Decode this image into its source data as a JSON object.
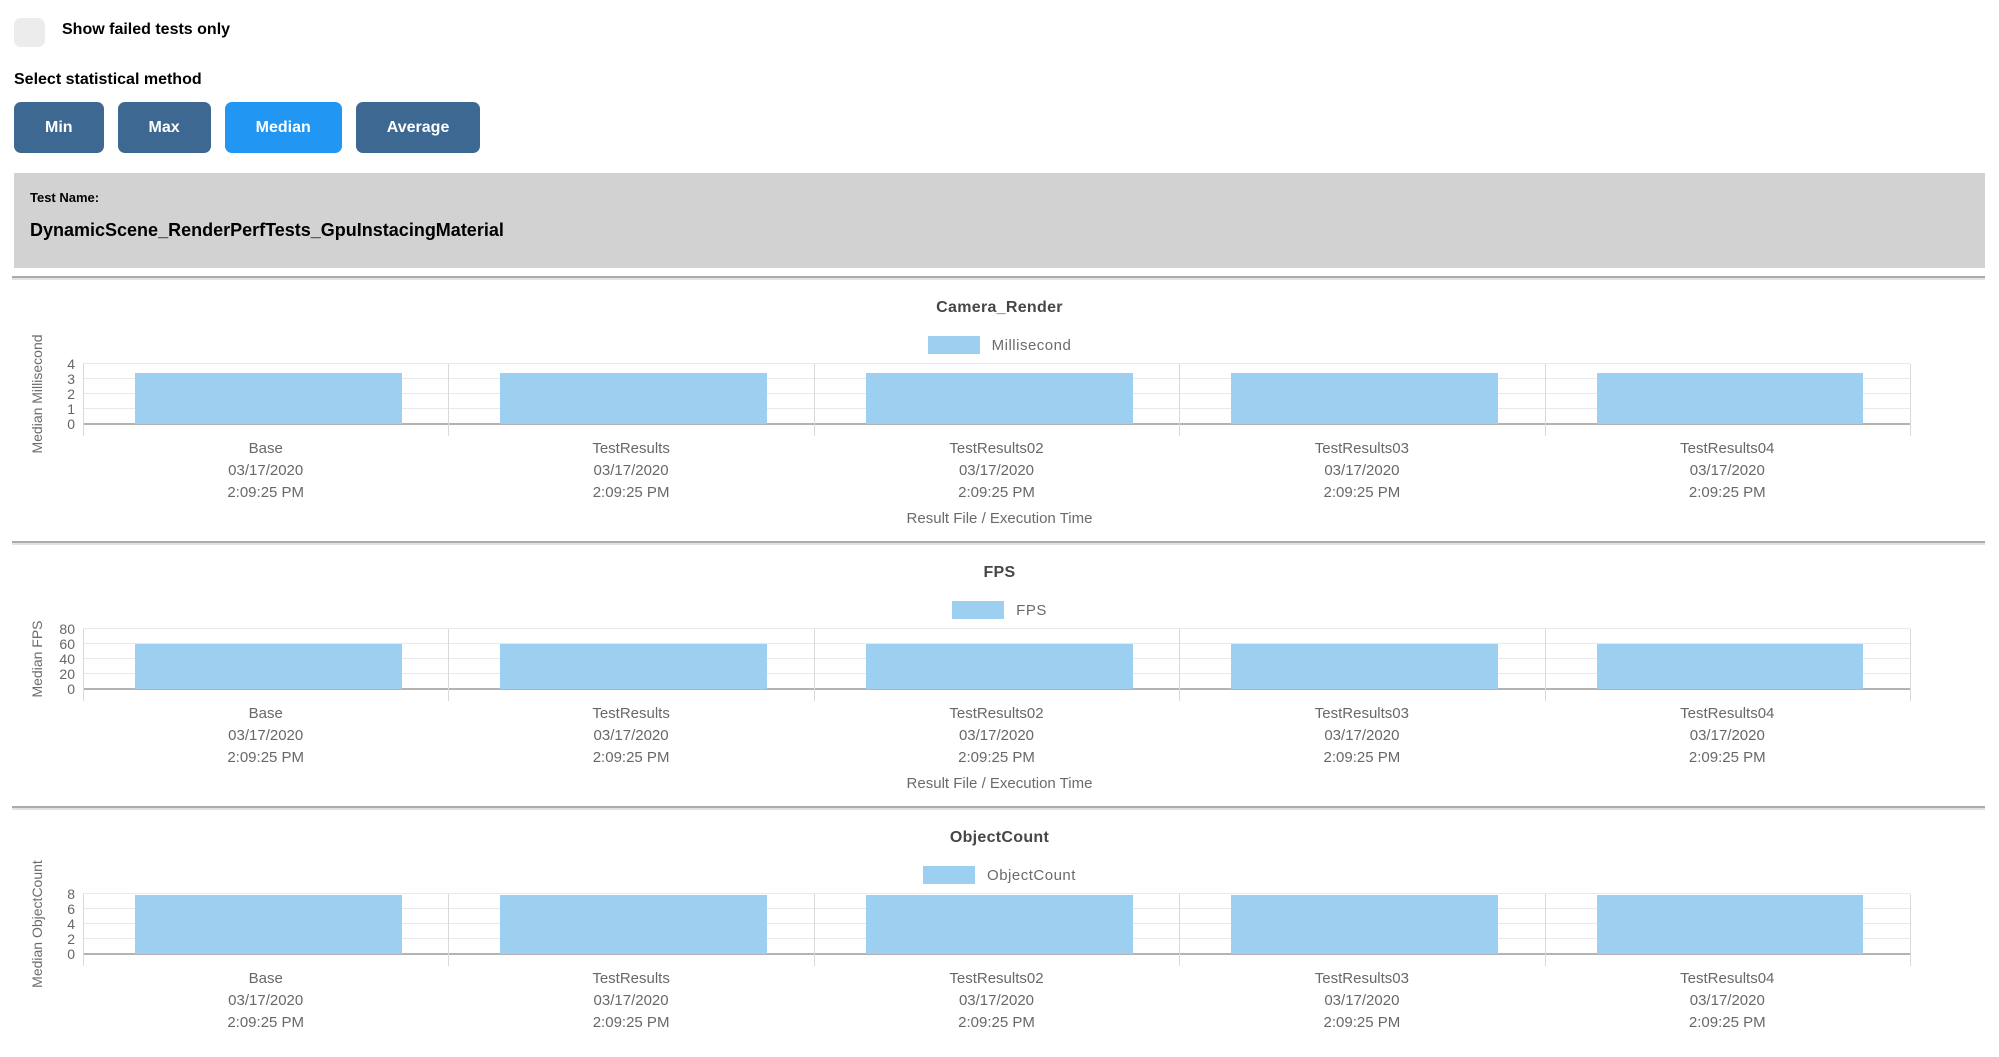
{
  "colors": {
    "active_button": "#2196f3",
    "inactive_button": "#3c6892",
    "bar_fill": "#9dcff1",
    "test_bar_background": "#d2d2d2"
  },
  "filters": {
    "show_failed_label": "Show failed tests only",
    "show_failed_checked": false,
    "stat_method_label": "Select statistical method",
    "stat_buttons": [
      {
        "label": "Min",
        "active": false
      },
      {
        "label": "Max",
        "active": false
      },
      {
        "label": "Median",
        "active": true
      },
      {
        "label": "Average",
        "active": false
      }
    ]
  },
  "test_header": {
    "label": "Test Name:",
    "name": "DynamicScene_RenderPerfTests_GpuInstacingMaterial"
  },
  "chart_data": [
    {
      "type": "bar",
      "title": "Camera_Render",
      "legend": "Millisecond",
      "ylabel": "Median Millisecond",
      "xlabel": "Result File / Execution Time",
      "ylim": [
        0,
        4
      ],
      "y_ticks": [
        0,
        1,
        2,
        3,
        4
      ],
      "grid": true,
      "legend_position": "top",
      "categories": [
        {
          "name": "Base",
          "date": "03/17/2020",
          "time": "2:09:25 PM"
        },
        {
          "name": "TestResults",
          "date": "03/17/2020",
          "time": "2:09:25 PM"
        },
        {
          "name": "TestResults02",
          "date": "03/17/2020",
          "time": "2:09:25 PM"
        },
        {
          "name": "TestResults03",
          "date": "03/17/2020",
          "time": "2:09:25 PM"
        },
        {
          "name": "TestResults04",
          "date": "03/17/2020",
          "time": "2:09:25 PM"
        }
      ],
      "values": [
        3.4,
        3.4,
        3.4,
        3.4,
        3.4
      ]
    },
    {
      "type": "bar",
      "title": "FPS",
      "legend": "FPS",
      "ylabel": "Median FPS",
      "xlabel": "Result File / Execution Time",
      "ylim": [
        0,
        80
      ],
      "y_ticks": [
        0,
        20,
        40,
        60,
        80
      ],
      "grid": true,
      "legend_position": "top",
      "categories": [
        {
          "name": "Base",
          "date": "03/17/2020",
          "time": "2:09:25 PM"
        },
        {
          "name": "TestResults",
          "date": "03/17/2020",
          "time": "2:09:25 PM"
        },
        {
          "name": "TestResults02",
          "date": "03/17/2020",
          "time": "2:09:25 PM"
        },
        {
          "name": "TestResults03",
          "date": "03/17/2020",
          "time": "2:09:25 PM"
        },
        {
          "name": "TestResults04",
          "date": "03/17/2020",
          "time": "2:09:25 PM"
        }
      ],
      "values": [
        59.8,
        59.8,
        59.8,
        59.8,
        59.8
      ]
    },
    {
      "type": "bar",
      "title": "ObjectCount",
      "legend": "ObjectCount",
      "ylabel": "Median ObjectCount",
      "xlabel": "",
      "ylim": [
        0,
        8
      ],
      "y_ticks": [
        0,
        2,
        4,
        6,
        8
      ],
      "grid": true,
      "legend_position": "top",
      "categories": [
        {
          "name": "Base",
          "date": "03/17/2020",
          "time": "2:09:25 PM"
        },
        {
          "name": "TestResults",
          "date": "03/17/2020",
          "time": "2:09:25 PM"
        },
        {
          "name": "TestResults02",
          "date": "03/17/2020",
          "time": "2:09:25 PM"
        },
        {
          "name": "TestResults03",
          "date": "03/17/2020",
          "time": "2:09:25 PM"
        },
        {
          "name": "TestResults04",
          "date": "03/17/2020",
          "time": "2:09:25 PM"
        }
      ],
      "values": [
        7.9,
        7.9,
        7.9,
        7.9,
        7.9
      ]
    }
  ]
}
